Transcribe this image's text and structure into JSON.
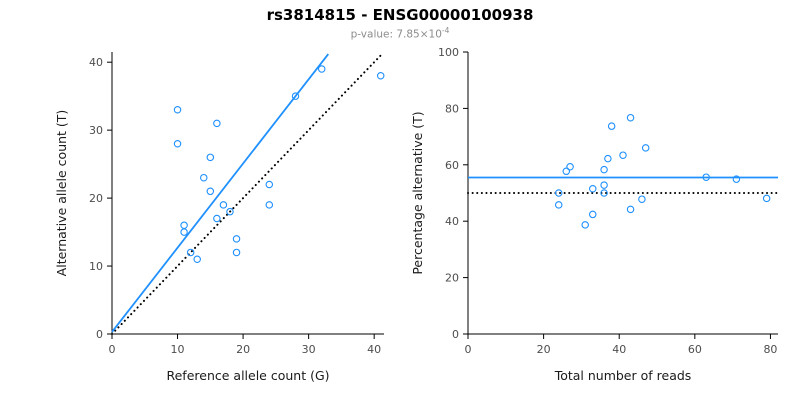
{
  "header": {
    "title": "rs3814815 - ENSG00000100938",
    "subtitle_prefix": "p-value: 7.85×10",
    "subtitle_exp": "-4"
  },
  "style": {
    "accent_blue": "#1e90ff",
    "dotted_black": "#000000",
    "tick_label_color": "#4d4d4d",
    "axis_label_color": "#1a1a1a"
  },
  "chart_data": [
    {
      "type": "scatter",
      "name": "allele-counts",
      "xlabel": "Reference allele count (G)",
      "ylabel": "Alternative allele count (T)",
      "xlim": [
        0,
        41.5
      ],
      "ylim": [
        0,
        41.5
      ],
      "xticks": [
        0,
        10,
        20,
        30,
        40
      ],
      "yticks": [
        0,
        10,
        20,
        30,
        40
      ],
      "grid": false,
      "point_color": "#1e90ff",
      "points": [
        [
          10,
          33
        ],
        [
          10,
          28
        ],
        [
          11,
          16
        ],
        [
          11,
          15
        ],
        [
          12,
          12
        ],
        [
          13,
          11
        ],
        [
          14,
          23
        ],
        [
          15,
          26
        ],
        [
          15,
          21
        ],
        [
          16,
          31
        ],
        [
          16,
          17
        ],
        [
          17,
          19
        ],
        [
          18,
          18
        ],
        [
          19,
          14
        ],
        [
          19,
          12
        ],
        [
          24,
          22
        ],
        [
          24,
          19
        ],
        [
          28,
          35
        ],
        [
          32,
          39
        ],
        [
          41,
          38
        ]
      ],
      "lines": [
        {
          "style": "dotted",
          "color": "#000000",
          "x1": 0,
          "y1": 0,
          "x2": 41.3,
          "y2": 41.3
        },
        {
          "style": "solid",
          "color": "#1e90ff",
          "x1": 0,
          "y1": 0.3,
          "x2": 33,
          "y2": 41.2
        }
      ]
    },
    {
      "type": "scatter",
      "name": "percentage-alternative",
      "xlabel": "Total number of reads",
      "ylabel": "Percentage alternative (T)",
      "xlim": [
        0,
        82
      ],
      "ylim": [
        0,
        100
      ],
      "xticks": [
        0,
        20,
        40,
        60,
        80
      ],
      "yticks": [
        0,
        20,
        40,
        60,
        80,
        100
      ],
      "grid": false,
      "point_color": "#1e90ff",
      "points": [
        [
          43,
          76.7
        ],
        [
          38,
          73.7
        ],
        [
          27,
          59.3
        ],
        [
          26,
          57.7
        ],
        [
          24,
          50.0
        ],
        [
          24,
          45.8
        ],
        [
          37,
          62.2
        ],
        [
          41,
          63.4
        ],
        [
          36,
          58.3
        ],
        [
          47,
          66.0
        ],
        [
          33,
          51.5
        ],
        [
          36,
          52.8
        ],
        [
          36,
          50.0
        ],
        [
          33,
          42.4
        ],
        [
          31,
          38.7
        ],
        [
          46,
          47.8
        ],
        [
          43,
          44.2
        ],
        [
          63,
          55.6
        ],
        [
          71,
          54.9
        ],
        [
          79,
          48.1
        ]
      ],
      "lines": [
        {
          "style": "dotted",
          "color": "#000000",
          "x1": 0,
          "y1": 50,
          "x2": 82,
          "y2": 50
        },
        {
          "style": "solid",
          "color": "#1e90ff",
          "x1": 0,
          "y1": 55.5,
          "x2": 82,
          "y2": 55.5
        }
      ]
    }
  ]
}
